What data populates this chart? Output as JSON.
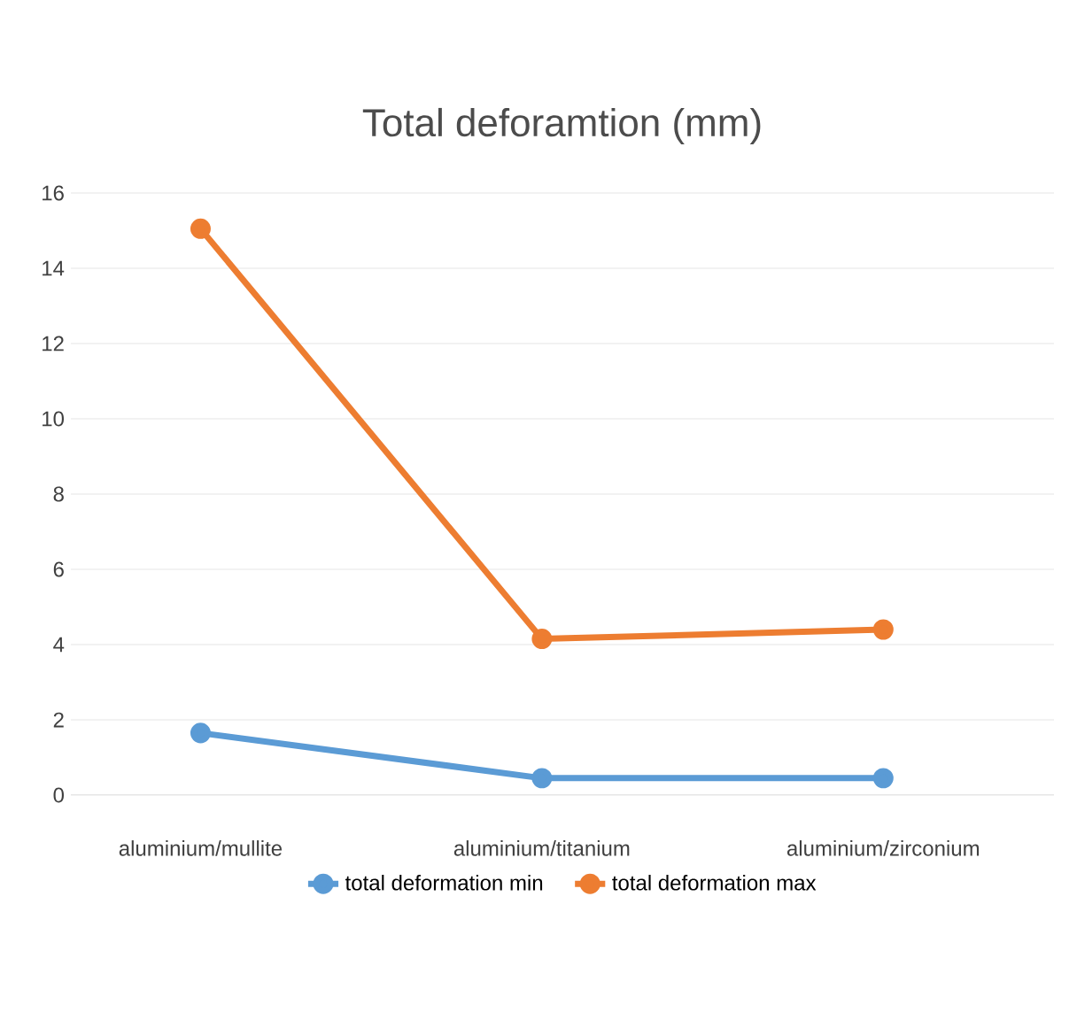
{
  "chart_data": {
    "type": "line",
    "title": "Total deforamtion (mm)",
    "categories": [
      "aluminium/mullite",
      "aluminium/titanium",
      "aluminium/zirconium"
    ],
    "series": [
      {
        "name": "total deformation min",
        "color": "#5b9bd5",
        "values": [
          1.65,
          0.45,
          0.45
        ]
      },
      {
        "name": "total deformation max",
        "color": "#ed7d31",
        "values": [
          15.05,
          4.15,
          4.4
        ]
      }
    ],
    "ylim": [
      0,
      16
    ],
    "yticks": [
      0,
      2,
      4,
      6,
      8,
      10,
      12,
      14,
      16
    ],
    "grid": "y",
    "legend": "bottom",
    "marker": "circle"
  }
}
